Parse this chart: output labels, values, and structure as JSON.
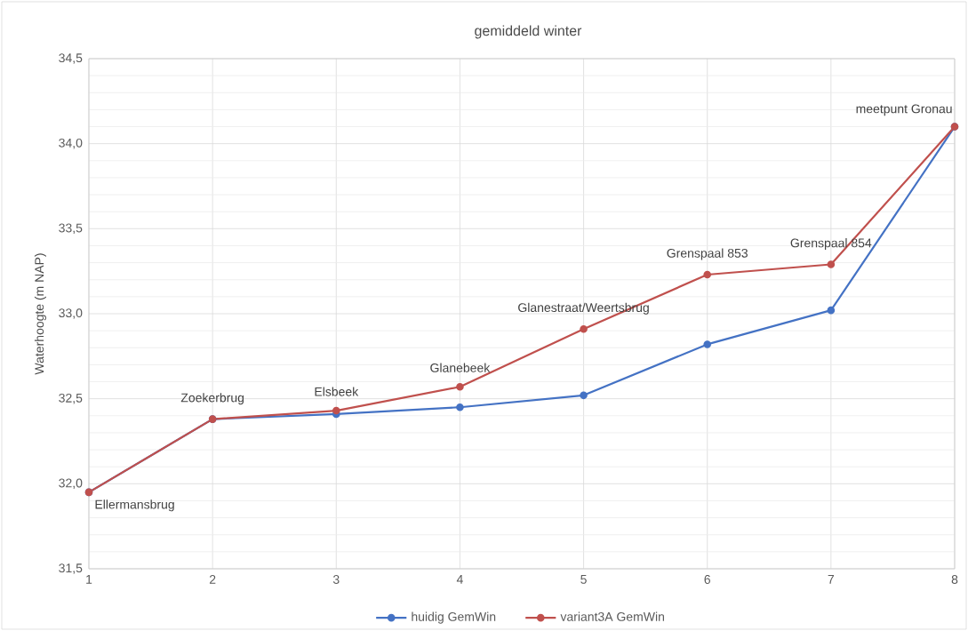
{
  "chart_data": {
    "type": "line",
    "title": "gemiddeld  winter",
    "ylabel": "Waterhoogte (m NAP)",
    "x": [
      1,
      2,
      3,
      4,
      5,
      6,
      7,
      8
    ],
    "series": [
      {
        "name": "huidig GemWin",
        "color": "#4472c4",
        "values": [
          31.95,
          32.38,
          32.41,
          32.45,
          32.52,
          32.82,
          33.02,
          34.1
        ]
      },
      {
        "name": "variant3A GemWin",
        "color": "#c0504d",
        "values": [
          31.95,
          32.38,
          32.43,
          32.57,
          32.91,
          33.23,
          33.29,
          34.1
        ]
      }
    ],
    "xlim": [
      1,
      8
    ],
    "xticks": [
      1,
      2,
      3,
      4,
      5,
      6,
      7,
      8
    ],
    "ylim": [
      31.5,
      34.5
    ],
    "yticks": [
      {
        "value": 31.5,
        "label": "31,5"
      },
      {
        "value": 32.0,
        "label": "32,0"
      },
      {
        "value": 32.5,
        "label": "32,5"
      },
      {
        "value": 33.0,
        "label": "33,0"
      },
      {
        "value": 33.5,
        "label": "33,5"
      },
      {
        "value": 34.0,
        "label": "34,0"
      },
      {
        "value": 34.5,
        "label": "34,5"
      }
    ],
    "annotations": [
      {
        "text": "Ellermansbrug",
        "x": 1,
        "y": 31.95
      },
      {
        "text": "Zoekerbrug",
        "x": 2,
        "y": 32.38
      },
      {
        "text": "Elsbeek",
        "x": 3,
        "y": 32.43
      },
      {
        "text": "Glanebeek",
        "x": 4,
        "y": 32.57
      },
      {
        "text": "Glanestraat/Weertsbrug",
        "x": 5,
        "y": 32.91
      },
      {
        "text": "Grenspaal 853",
        "x": 6,
        "y": 33.23
      },
      {
        "text": "Grenspaal 854",
        "x": 7,
        "y": 33.29
      },
      {
        "text": "meetpunt  Gronau",
        "x": 8,
        "y": 34.1
      }
    ],
    "grid": true,
    "legend": "bottom",
    "marker": "circle",
    "line_style": "solid"
  }
}
